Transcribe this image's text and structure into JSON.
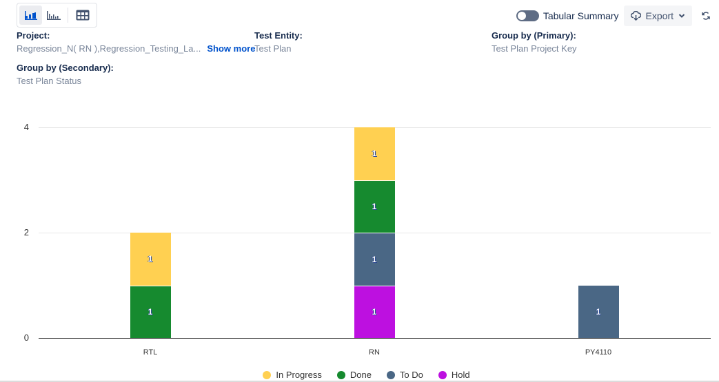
{
  "toolbar": {
    "view_buttons": [
      {
        "name": "stacked-bar-chart",
        "active": true
      },
      {
        "name": "bar-chart",
        "active": false
      },
      {
        "name": "table-grid",
        "active": false
      }
    ],
    "toggle_label": "Tabular Summary",
    "toggle_on": false,
    "export_label": "Export"
  },
  "meta": {
    "project_label": "Project:",
    "project_value": "Regression_N( RN ),Regression_Testing_La...",
    "show_more": "Show more",
    "entity_label": "Test Entity:",
    "entity_value": "Test Plan",
    "primary_label": "Group by (Primary):",
    "primary_value": "Test Plan Project Key",
    "secondary_label": "Group by (Secondary):",
    "secondary_value": "Test Plan Status"
  },
  "colors": {
    "in_progress": "#ffd051",
    "done": "#168a2f",
    "to_do": "#4a6785",
    "hold": "#bd10e0"
  },
  "chart_data": {
    "type": "bar",
    "stacked": true,
    "title": "",
    "xlabel": "",
    "ylabel": "",
    "categories": [
      "RTL",
      "RN",
      "PY4110"
    ],
    "series": [
      {
        "name": "In Progress",
        "color": "#ffd051",
        "values": [
          1,
          1,
          0
        ]
      },
      {
        "name": "Done",
        "color": "#168a2f",
        "values": [
          1,
          1,
          0
        ]
      },
      {
        "name": "To Do",
        "color": "#4a6785",
        "values": [
          0,
          1,
          1
        ]
      },
      {
        "name": "Hold",
        "color": "#bd10e0",
        "values": [
          0,
          1,
          0
        ]
      }
    ],
    "yticks": [
      "0",
      "2",
      "4"
    ],
    "ylim": [
      0,
      4
    ],
    "grid": true,
    "data_labels": true,
    "legend_position": "bottom",
    "legend": [
      "In Progress",
      "Done",
      "To Do",
      "Hold"
    ]
  }
}
